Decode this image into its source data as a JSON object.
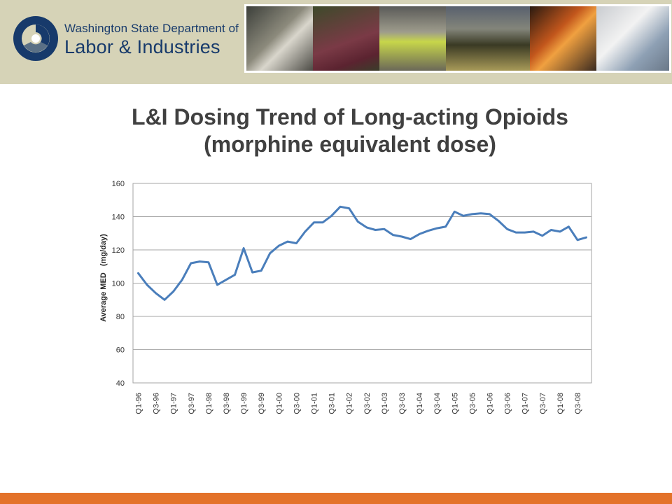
{
  "header": {
    "agency_line1": "Washington State Department of",
    "agency_line2": "Labor & Industries",
    "brand_colors": {
      "background": "#d6d3b7",
      "navy": "#173a6b",
      "accent": "#e3722a"
    }
  },
  "chart_data": {
    "type": "line",
    "title": "L&I Dosing Trend of Long-acting Opioids (morphine equivalent dose)",
    "title_lines": [
      "L&I Dosing Trend of Long-acting Opioids",
      "(morphine equivalent dose)"
    ],
    "xlabel": "",
    "ylabel": "Average MED   (mg/day)",
    "ylim": [
      40,
      160
    ],
    "yticks": [
      40,
      60,
      80,
      100,
      120,
      140,
      160
    ],
    "grid": true,
    "legend": "none",
    "line_color": "#4a7ebb",
    "x_tick_labels": [
      "Q1-96",
      "Q3-96",
      "Q1-97",
      "Q3-97",
      "Q1-98",
      "Q3-98",
      "Q1-99",
      "Q3-99",
      "Q1-00",
      "Q3-00",
      "Q1-01",
      "Q3-01",
      "Q1-02",
      "Q3-02",
      "Q1-03",
      "Q3-03",
      "Q1-04",
      "Q3-04",
      "Q1-05",
      "Q3-05",
      "Q1-06",
      "Q3-06",
      "Q1-07",
      "Q3-07",
      "Q1-08",
      "Q3-08"
    ],
    "categories": [
      "Q1-96",
      "Q2-96",
      "Q3-96",
      "Q4-96",
      "Q1-97",
      "Q2-97",
      "Q3-97",
      "Q4-97",
      "Q1-98",
      "Q2-98",
      "Q3-98",
      "Q4-98",
      "Q1-99",
      "Q2-99",
      "Q3-99",
      "Q4-99",
      "Q1-00",
      "Q2-00",
      "Q3-00",
      "Q4-00",
      "Q1-01",
      "Q2-01",
      "Q3-01",
      "Q4-01",
      "Q1-02",
      "Q2-02",
      "Q3-02",
      "Q4-02",
      "Q1-03",
      "Q2-03",
      "Q3-03",
      "Q4-03",
      "Q1-04",
      "Q2-04",
      "Q3-04",
      "Q4-04",
      "Q1-05",
      "Q2-05",
      "Q3-05",
      "Q4-05",
      "Q1-06",
      "Q2-06",
      "Q3-06",
      "Q4-06",
      "Q1-07",
      "Q2-07",
      "Q3-07",
      "Q4-07",
      "Q1-08",
      "Q2-08",
      "Q3-08",
      "Q4-08"
    ],
    "values": [
      106,
      99,
      94,
      90,
      95,
      102,
      112,
      113,
      112.5,
      99,
      102,
      105,
      121,
      106.5,
      107.5,
      118,
      122.5,
      125,
      124,
      131,
      136.5,
      136.5,
      140.5,
      146,
      145,
      137,
      133.5,
      132,
      132.5,
      129,
      128,
      126.5,
      129.5,
      131.5,
      133,
      134,
      143,
      140.5,
      141.5,
      142,
      141.5,
      137.5,
      132.5,
      130.5,
      130.5,
      131,
      128.5,
      132,
      131,
      134,
      126,
      127.5
    ]
  }
}
